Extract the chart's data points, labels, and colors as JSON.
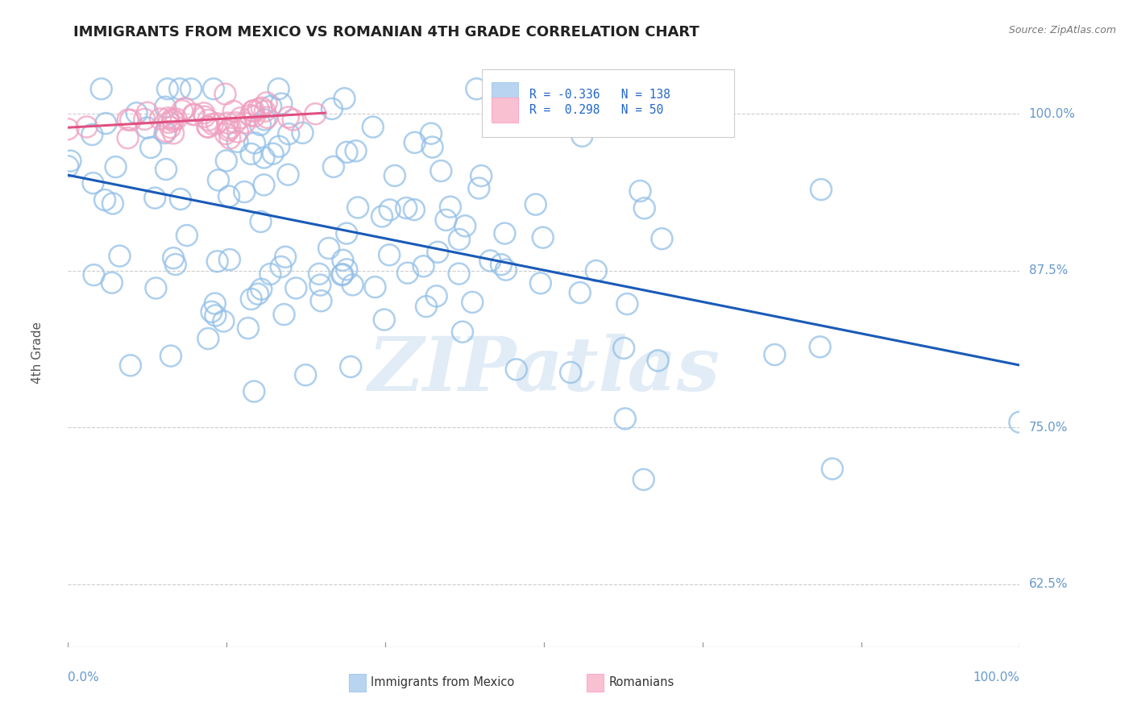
{
  "title": "IMMIGRANTS FROM MEXICO VS ROMANIAN 4TH GRADE CORRELATION CHART",
  "source": "Source: ZipAtlas.com",
  "ylabel": "4th Grade",
  "blue_label": "Immigrants from Mexico",
  "pink_label": "Romanians",
  "blue_R": -0.336,
  "blue_N": 138,
  "pink_R": 0.298,
  "pink_N": 50,
  "blue_color": "#92bfe8",
  "blue_line_color": "#1a5ab8",
  "pink_color": "#f0a0c0",
  "pink_line_color": "#e05080",
  "legend_blue_fill": "#b8d4f0",
  "legend_pink_fill": "#f8c0d0",
  "background_color": "#ffffff",
  "watermark_text": "ZIPatlas",
  "watermark_color": "#cde0f0",
  "title_fontsize": 13,
  "source_fontsize": 9,
  "legend_text_color": "#2266cc",
  "axis_tick_color": "#6699cc",
  "ylabel_color": "#555555",
  "bottom_label_color": "#333333",
  "grid_color": "#cccccc",
  "ytick_values": [
    0.625,
    0.75,
    0.875,
    1.0
  ],
  "ytick_labels": [
    "62.5%",
    "75.0%",
    "87.5%",
    "100.0%"
  ],
  "ymin": 0.575,
  "ymax": 1.045,
  "xmin": 0.0,
  "xmax": 1.0,
  "scatter_size": 350,
  "scatter_lw": 1.8,
  "scatter_alpha": 0.75,
  "trend_lw": 2.2
}
